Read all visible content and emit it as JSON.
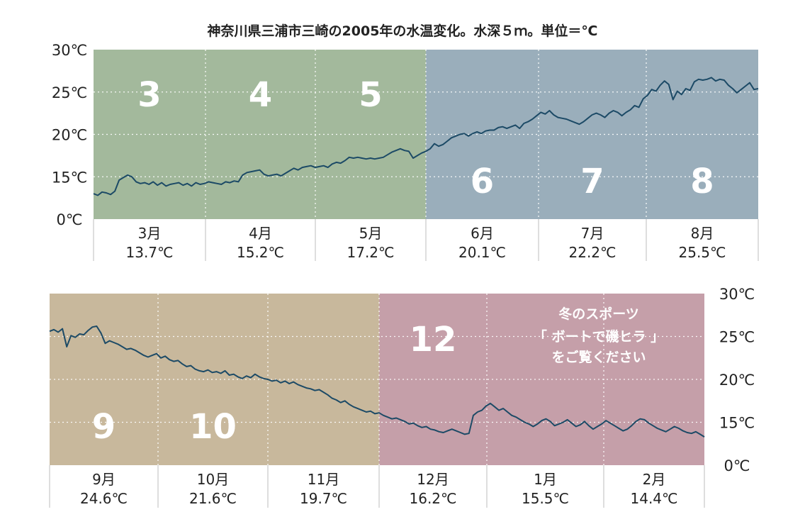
{
  "colors": {
    "spring": "#a3b99c",
    "summer": "#9aaebb",
    "autumn": "#c8b89c",
    "winter": "#c59fa9",
    "line": "#1c4a66"
  },
  "chart_data": {
    "type": "line",
    "title": "神奈川県三浦市三崎の2005年の水温変化。水深５ｍ。単位＝℃",
    "panels": [
      {
        "name": "top",
        "yticks": [
          "30℃",
          "25℃",
          "20℃",
          "15℃",
          "0℃"
        ],
        "bands": [
          {
            "months": [
              "3",
              "4",
              "5"
            ],
            "color": "#a3b99c"
          },
          {
            "months": [
              "6",
              "7",
              "8"
            ],
            "color": "#9aaebb"
          }
        ],
        "months": [
          {
            "big": "3",
            "name": "3月",
            "avg": "13.7℃"
          },
          {
            "big": "4",
            "name": "4月",
            "avg": "15.2℃"
          },
          {
            "big": "5",
            "name": "5月",
            "avg": "17.2℃"
          },
          {
            "big": "6",
            "name": "6月",
            "avg": "20.1℃"
          },
          {
            "big": "7",
            "name": "7月",
            "avg": "22.2℃"
          },
          {
            "big": "8",
            "name": "8月",
            "avg": "25.5℃"
          }
        ],
        "values": [
          13,
          12.8,
          13.2,
          13.1,
          12.9,
          13.3,
          14.6,
          14.9,
          15.2,
          15,
          14.4,
          14.2,
          14.3,
          14.1,
          14.4,
          14,
          14.3,
          13.9,
          14.1,
          14.2,
          14.3,
          14,
          14.2,
          13.9,
          14.3,
          14.1,
          14.2,
          14.4,
          14.3,
          14.2,
          14.1,
          14.4,
          14.3,
          14.5,
          14.4,
          15.2,
          15.5,
          15.6,
          15.7,
          15.8,
          15.3,
          15.1,
          15.2,
          15.3,
          15.1,
          15.4,
          15.7,
          16,
          15.8,
          16.1,
          16.2,
          16.3,
          16.1,
          16.2,
          16.3,
          16.1,
          16.5,
          16.7,
          16.6,
          16.9,
          17.3,
          17.2,
          17.3,
          17.2,
          17.1,
          17.2,
          17.1,
          17.2,
          17.3,
          17.6,
          17.9,
          18.1,
          18.3,
          18.1,
          18,
          17.2,
          17.5,
          17.8,
          18,
          18.3,
          18.9,
          18.6,
          18.8,
          19.2,
          19.6,
          19.8,
          20,
          20.1,
          19.8,
          20.1,
          20.3,
          20.1,
          20.4,
          20.5,
          20.5,
          20.8,
          20.9,
          20.7,
          20.9,
          21.1,
          20.7,
          21.3,
          21.5,
          21.8,
          22.2,
          22.6,
          22.4,
          22.8,
          22.3,
          22,
          21.9,
          21.8,
          21.6,
          21.4,
          21.2,
          21.5,
          21.9,
          22.3,
          22.5,
          22.3,
          22,
          22.5,
          22.8,
          22.6,
          22.2,
          22.6,
          22.9,
          23.4,
          23.2,
          24.2,
          24.6,
          25.3,
          25.1,
          25.8,
          26.3,
          25.9,
          24.1,
          25.1,
          24.7,
          25.4,
          25.2,
          26.2,
          26.5,
          26.4,
          26.5,
          26.7,
          26.3,
          26.5,
          26.4,
          25.8,
          25.4,
          24.9,
          25.3,
          25.7,
          26.1,
          25.3,
          25.4
        ]
      },
      {
        "name": "bottom",
        "yticks": [
          "30℃",
          "25℃",
          "20℃",
          "15℃",
          "0℃"
        ],
        "bands": [
          {
            "months": [
              "9",
              "10",
              "11"
            ],
            "color": "#c8b89c"
          },
          {
            "months": [
              "12",
              "1",
              "2"
            ],
            "color": "#c59fa9"
          }
        ],
        "months": [
          {
            "big": "9",
            "name": "9月",
            "avg": "24.6℃"
          },
          {
            "big": "10",
            "name": "10月",
            "avg": "21.6℃"
          },
          {
            "big": "",
            "name": "11月",
            "avg": "19.7℃"
          },
          {
            "big": "12",
            "name": "12月",
            "avg": "16.2℃"
          },
          {
            "big": "",
            "name": "1月",
            "avg": "15.5℃"
          },
          {
            "big": "",
            "name": "2月",
            "avg": "14.4℃"
          }
        ],
        "values": [
          25.6,
          25.8,
          25.5,
          25.9,
          23.8,
          25.1,
          24.9,
          25.3,
          25.2,
          25.7,
          26.1,
          26.2,
          25.4,
          24.2,
          24.5,
          24.3,
          24.1,
          23.8,
          23.5,
          23.6,
          23.4,
          23.1,
          22.8,
          22.6,
          22.8,
          23,
          22.5,
          22.7,
          22.3,
          22.1,
          22.2,
          21.8,
          21.5,
          21.6,
          21.2,
          21,
          20.9,
          21.1,
          20.8,
          20.9,
          20.7,
          21,
          20.5,
          20.6,
          20.3,
          20.1,
          20.4,
          20.2,
          20.6,
          20.3,
          20.1,
          20,
          19.8,
          19.9,
          19.6,
          19.8,
          19.5,
          19.7,
          19.4,
          19.2,
          19,
          18.9,
          18.7,
          18.8,
          18.5,
          18.2,
          17.8,
          17.6,
          17.3,
          17.5,
          17.1,
          16.8,
          16.6,
          16.4,
          16.2,
          16.3,
          16,
          16.1,
          15.8,
          15.6,
          15.4,
          15.5,
          15.3,
          15.1,
          14.8,
          14.9,
          14.6,
          14.4,
          14.5,
          14.2,
          14.1,
          13.9,
          13.8,
          14,
          14.2,
          14,
          13.8,
          13.6,
          13.7,
          15.8,
          16.2,
          16.4,
          16.9,
          17.2,
          16.8,
          16.4,
          16.6,
          16.2,
          15.8,
          15.6,
          15.3,
          15,
          14.8,
          14.5,
          14.8,
          15.2,
          15.4,
          15.1,
          14.6,
          14.8,
          15,
          15.3,
          14.9,
          14.5,
          14.7,
          15.1,
          14.6,
          14.2,
          14.5,
          14.8,
          15.2,
          14.9,
          14.6,
          14.3,
          14,
          14.2,
          14.6,
          15.1,
          15.4,
          15.3,
          14.9,
          14.6,
          14.3,
          14.1,
          13.9,
          14.2,
          14.5,
          14.3,
          14,
          13.8,
          13.7,
          13.9,
          13.6,
          13.3
        ]
      }
    ]
  },
  "note_lines": [
    "冬のスポーツ",
    "「 ボートで磯ヒラ 」",
    "をご覧ください"
  ]
}
